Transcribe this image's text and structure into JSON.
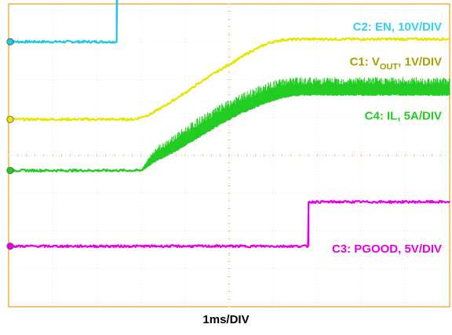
{
  "chart_data": {
    "type": "line",
    "xlabel": "1ms/DIV",
    "time_unit": "ms",
    "x_divisions": 10,
    "y_divisions": 8,
    "grid": true,
    "xlim": [
      0,
      10
    ],
    "ylim": [
      0,
      8
    ],
    "series": [
      {
        "name": "C2: EN, 10V/DIV",
        "label_parts": {
          "main": "C2: EN, 10V/DIV"
        },
        "color": "#20c8e6",
        "label_color": "#33d1ef",
        "x": [
          0,
          2.45,
          2.45,
          10
        ],
        "y": [
          7.0,
          7.0,
          8.33,
          8.33
        ],
        "noise": 0.03
      },
      {
        "name": "C1: VOUT, 1V/DIV",
        "label_parts": {
          "pre": "C1: V",
          "sub": "OUT",
          "post": ", 1V/DIV"
        },
        "color": "#e6e600",
        "label_color": "#a8a000",
        "x": [
          0,
          2.85,
          3.2,
          3.6,
          4.0,
          4.5,
          5.0,
          5.5,
          5.9,
          6.2,
          6.6,
          10
        ],
        "y": [
          4.95,
          4.95,
          5.08,
          5.35,
          5.65,
          6.05,
          6.4,
          6.75,
          6.97,
          7.05,
          7.07,
          7.07
        ],
        "noise": 0.03
      },
      {
        "name": "C4: IL, 5A/DIV",
        "label_parts": {
          "main": "C4: IL, 5A/DIV"
        },
        "color": "#22cc22",
        "label_color": "#22cc22",
        "x": [
          0,
          3.0,
          3.3,
          3.8,
          4.3,
          4.8,
          5.3,
          5.8,
          6.2,
          6.6,
          7.0,
          10
        ],
        "y": [
          3.6,
          3.6,
          3.85,
          4.15,
          4.5,
          4.85,
          5.15,
          5.4,
          5.55,
          5.62,
          5.62,
          5.62
        ],
        "ripple": [
          0,
          0,
          0.35,
          0.45,
          0.5,
          0.5,
          0.5,
          0.5,
          0.5,
          0.45,
          0.45,
          0.45
        ],
        "noise": 0.03
      },
      {
        "name": "C3: PGOOD, 5V/DIV",
        "label_parts": {
          "main": "C3: PGOOD, 5V/DIV"
        },
        "color": "#e600e6",
        "label_color": "#e600e6",
        "x": [
          0,
          6.8,
          6.8,
          10
        ],
        "y": [
          1.6,
          1.6,
          2.77,
          2.77
        ],
        "noise": 0.03
      }
    ]
  }
}
